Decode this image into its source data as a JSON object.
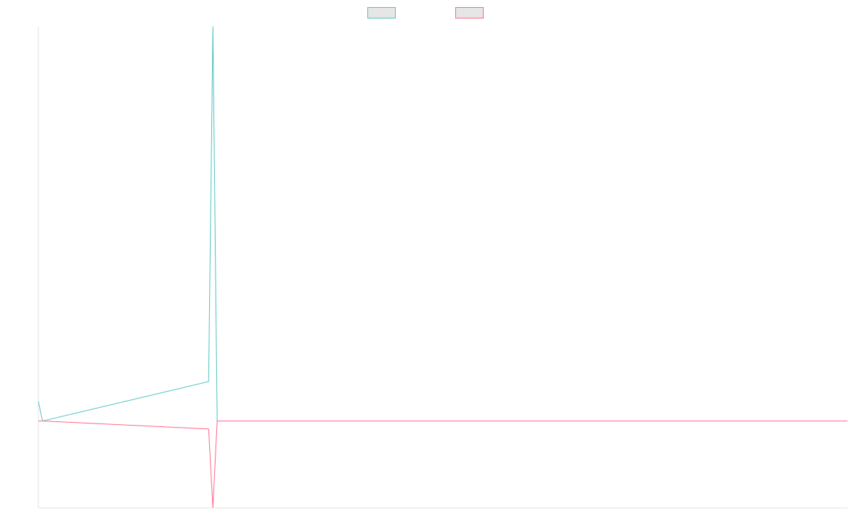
{
  "chart_data": {
    "type": "line",
    "x": [
      0,
      1,
      40,
      41,
      42,
      190
    ],
    "xlim": [
      0,
      190
    ],
    "ylim": [
      -0.22,
      1
    ],
    "series": [
      {
        "color": "#4bc0c0",
        "values": [
          0.05,
          0,
          0.1,
          1,
          0,
          0
        ]
      },
      {
        "color": "#ff6384",
        "values": [
          0,
          0,
          -0.02,
          -0.22,
          0,
          0
        ]
      }
    ],
    "legend": "top"
  }
}
